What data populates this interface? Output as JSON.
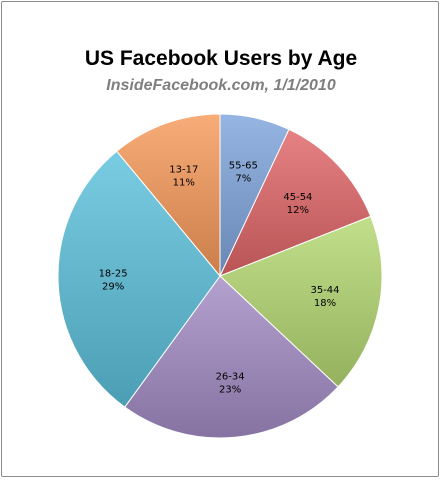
{
  "chart_data": {
    "type": "pie",
    "title": "US Facebook Users by Age",
    "subtitle": "InsideFacebook.com, 1/1/2010",
    "slices": [
      {
        "label": "55-65",
        "percent_label": "7%",
        "value": 7,
        "color": "#7FA5DD"
      },
      {
        "label": "45-54",
        "percent_label": "12%",
        "value": 12,
        "color": "#E06668"
      },
      {
        "label": "35-44",
        "percent_label": "18%",
        "value": 18,
        "color": "#B5D872"
      },
      {
        "label": "26-34",
        "percent_label": "23%",
        "value": 23,
        "color": "#A48CC6"
      },
      {
        "label": "18-25",
        "percent_label": "29%",
        "value": 29,
        "color": "#5CC1DB"
      },
      {
        "label": "13-17",
        "percent_label": "11%",
        "value": 11,
        "color": "#F79A5A"
      }
    ],
    "legend": "none",
    "labels_inside": true
  }
}
